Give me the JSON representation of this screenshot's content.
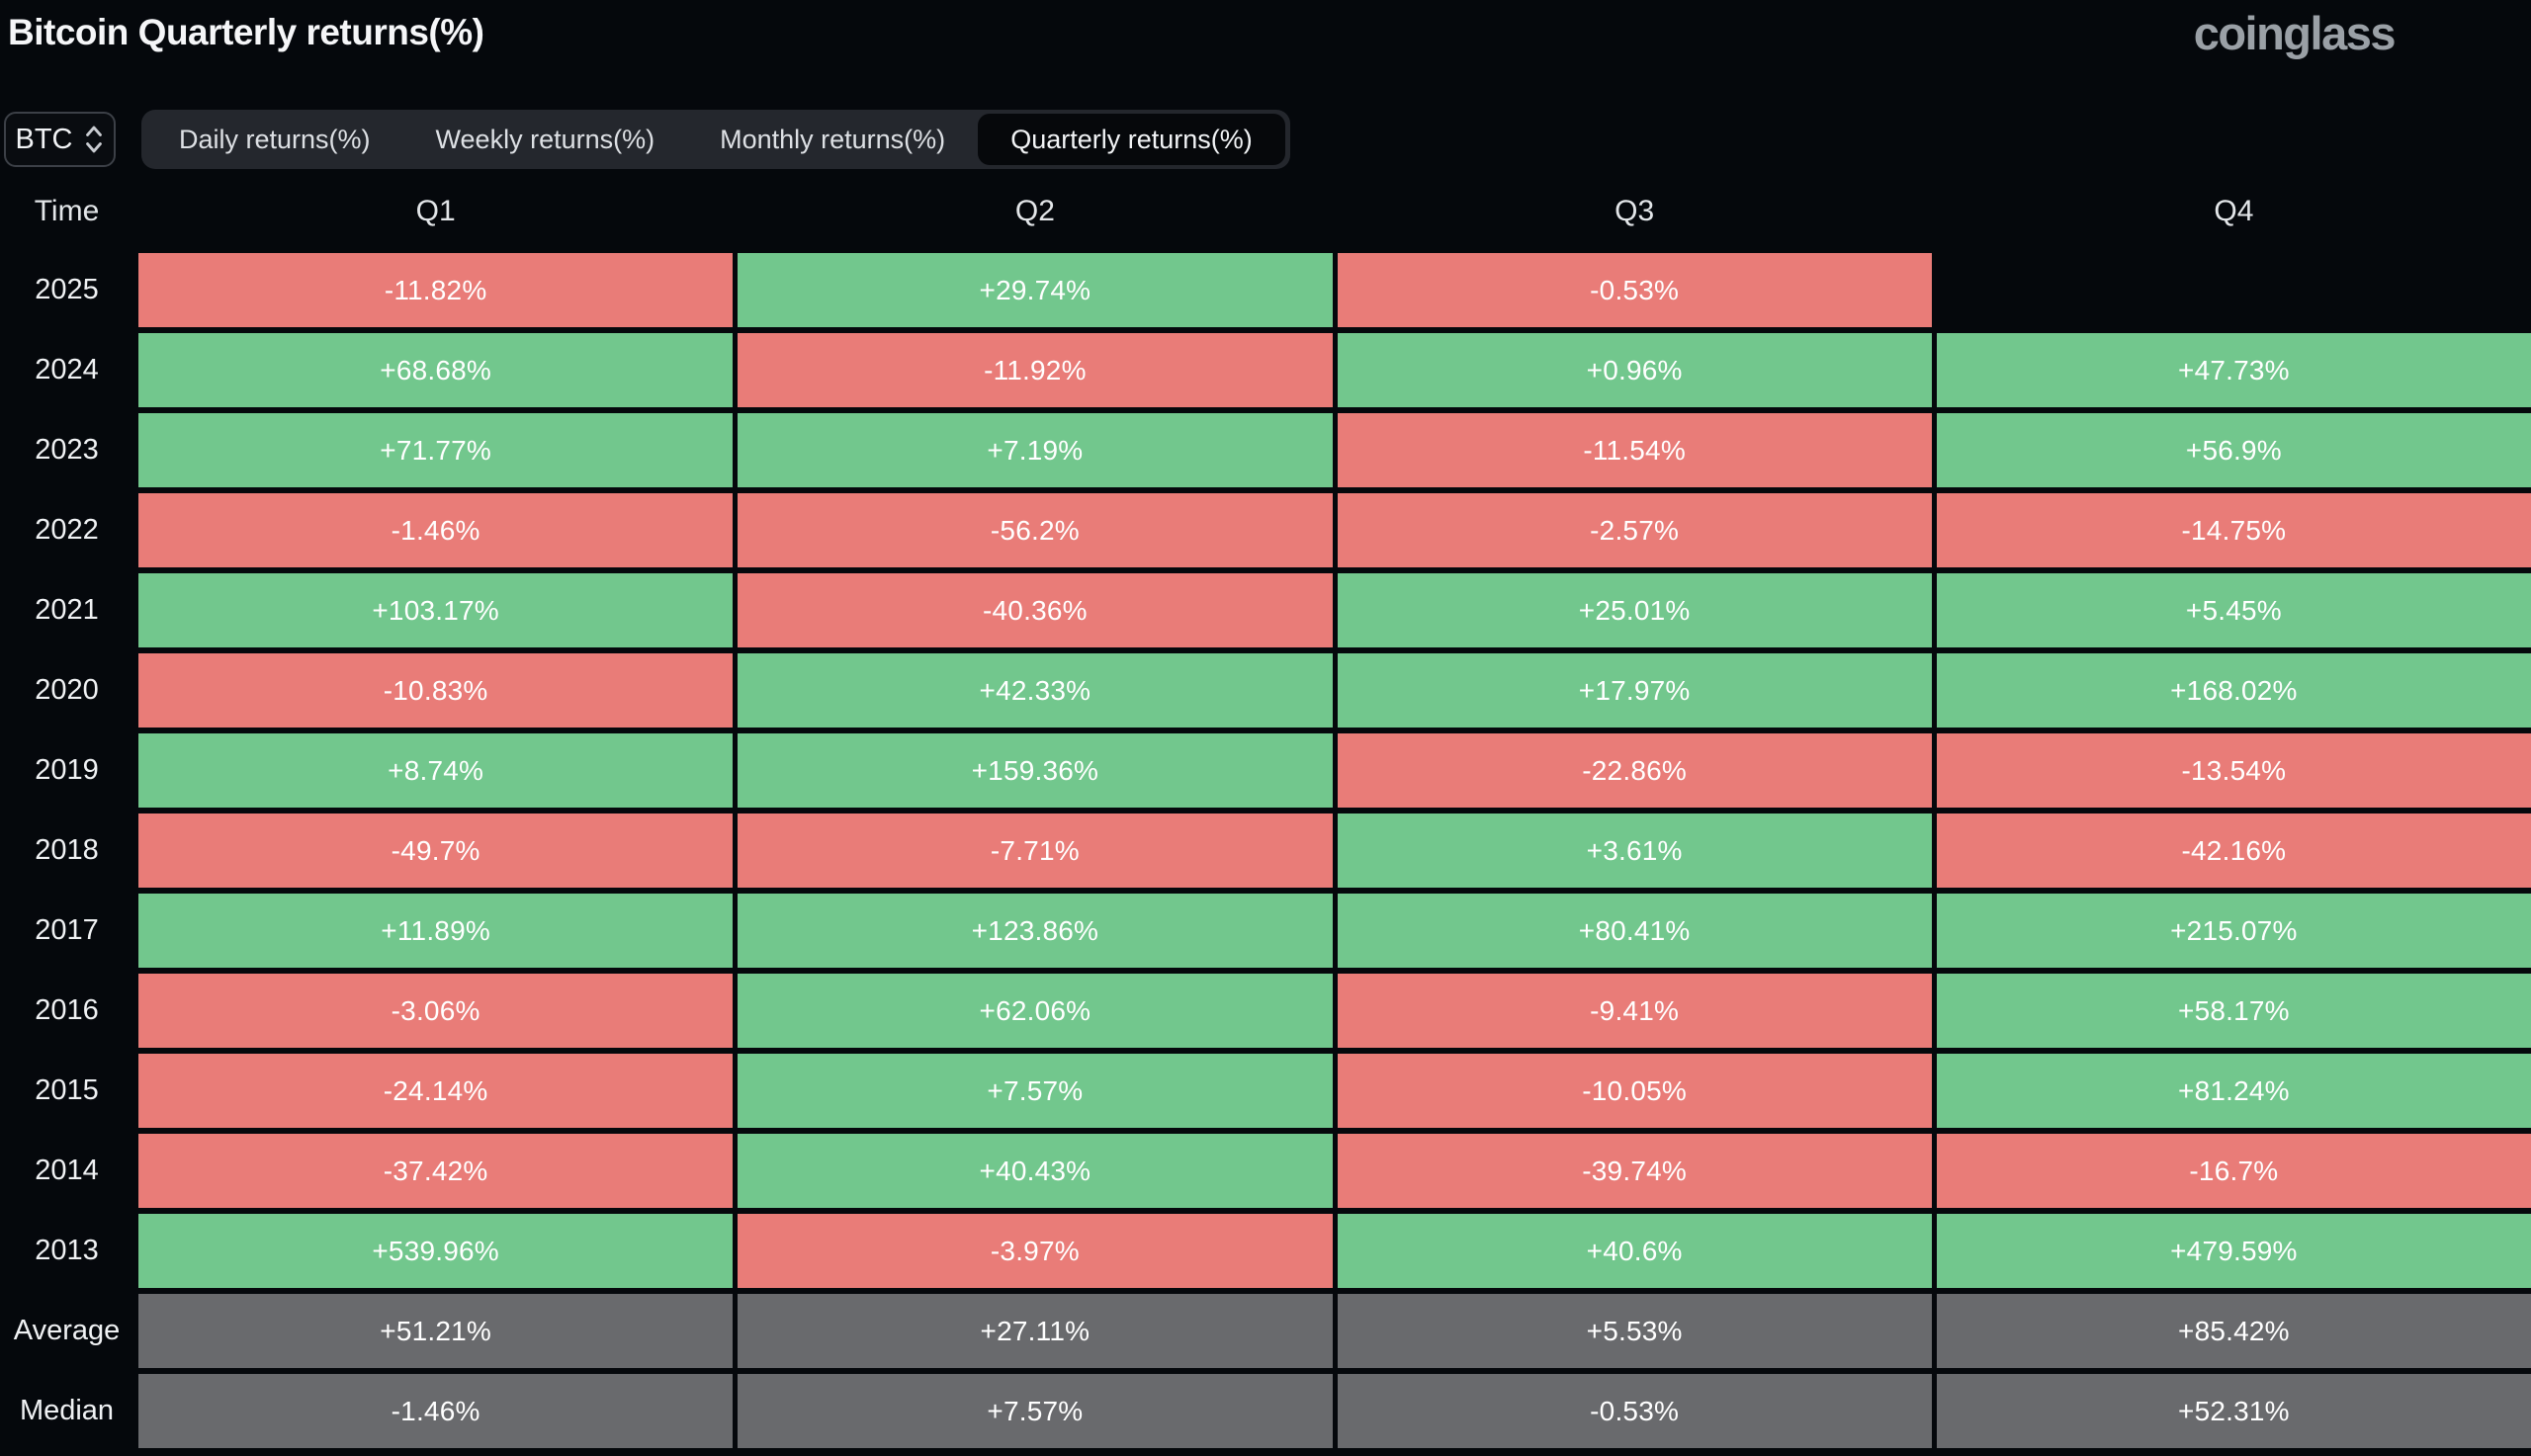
{
  "header": {
    "title": "Bitcoin Quarterly returns(%)",
    "logo": "coinglass"
  },
  "controls": {
    "coin": "BTC",
    "coin_selector_icon": "updown-chevron-icon",
    "tabs": [
      {
        "label": "Daily returns(%)",
        "selected": false
      },
      {
        "label": "Weekly returns(%)",
        "selected": false
      },
      {
        "label": "Monthly returns(%)",
        "selected": false
      },
      {
        "label": "Quarterly returns(%)",
        "selected": true
      }
    ]
  },
  "table": {
    "columns": [
      "Time",
      "Q1",
      "Q2",
      "Q3",
      "Q4"
    ],
    "rows": [
      {
        "label": "2025",
        "cells": [
          {
            "value": "-11.82%",
            "type": "neg"
          },
          {
            "value": "+29.74%",
            "type": "pos"
          },
          {
            "value": "-0.53%",
            "type": "neg"
          },
          {
            "value": "",
            "type": "empty"
          }
        ]
      },
      {
        "label": "2024",
        "cells": [
          {
            "value": "+68.68%",
            "type": "pos"
          },
          {
            "value": "-11.92%",
            "type": "neg"
          },
          {
            "value": "+0.96%",
            "type": "pos"
          },
          {
            "value": "+47.73%",
            "type": "pos"
          }
        ]
      },
      {
        "label": "2023",
        "cells": [
          {
            "value": "+71.77%",
            "type": "pos"
          },
          {
            "value": "+7.19%",
            "type": "pos"
          },
          {
            "value": "-11.54%",
            "type": "neg"
          },
          {
            "value": "+56.9%",
            "type": "pos"
          }
        ]
      },
      {
        "label": "2022",
        "cells": [
          {
            "value": "-1.46%",
            "type": "neg"
          },
          {
            "value": "-56.2%",
            "type": "neg"
          },
          {
            "value": "-2.57%",
            "type": "neg"
          },
          {
            "value": "-14.75%",
            "type": "neg"
          }
        ]
      },
      {
        "label": "2021",
        "cells": [
          {
            "value": "+103.17%",
            "type": "pos"
          },
          {
            "value": "-40.36%",
            "type": "neg"
          },
          {
            "value": "+25.01%",
            "type": "pos"
          },
          {
            "value": "+5.45%",
            "type": "pos"
          }
        ]
      },
      {
        "label": "2020",
        "cells": [
          {
            "value": "-10.83%",
            "type": "neg"
          },
          {
            "value": "+42.33%",
            "type": "pos"
          },
          {
            "value": "+17.97%",
            "type": "pos"
          },
          {
            "value": "+168.02%",
            "type": "pos"
          }
        ]
      },
      {
        "label": "2019",
        "cells": [
          {
            "value": "+8.74%",
            "type": "pos"
          },
          {
            "value": "+159.36%",
            "type": "pos"
          },
          {
            "value": "-22.86%",
            "type": "neg"
          },
          {
            "value": "-13.54%",
            "type": "neg"
          }
        ]
      },
      {
        "label": "2018",
        "cells": [
          {
            "value": "-49.7%",
            "type": "neg"
          },
          {
            "value": "-7.71%",
            "type": "neg"
          },
          {
            "value": "+3.61%",
            "type": "pos"
          },
          {
            "value": "-42.16%",
            "type": "neg"
          }
        ]
      },
      {
        "label": "2017",
        "cells": [
          {
            "value": "+11.89%",
            "type": "pos"
          },
          {
            "value": "+123.86%",
            "type": "pos"
          },
          {
            "value": "+80.41%",
            "type": "pos"
          },
          {
            "value": "+215.07%",
            "type": "pos"
          }
        ]
      },
      {
        "label": "2016",
        "cells": [
          {
            "value": "-3.06%",
            "type": "neg"
          },
          {
            "value": "+62.06%",
            "type": "pos"
          },
          {
            "value": "-9.41%",
            "type": "neg"
          },
          {
            "value": "+58.17%",
            "type": "pos"
          }
        ]
      },
      {
        "label": "2015",
        "cells": [
          {
            "value": "-24.14%",
            "type": "neg"
          },
          {
            "value": "+7.57%",
            "type": "pos"
          },
          {
            "value": "-10.05%",
            "type": "neg"
          },
          {
            "value": "+81.24%",
            "type": "pos"
          }
        ]
      },
      {
        "label": "2014",
        "cells": [
          {
            "value": "-37.42%",
            "type": "neg"
          },
          {
            "value": "+40.43%",
            "type": "pos"
          },
          {
            "value": "-39.74%",
            "type": "neg"
          },
          {
            "value": "-16.7%",
            "type": "neg"
          }
        ]
      },
      {
        "label": "2013",
        "cells": [
          {
            "value": "+539.96%",
            "type": "pos"
          },
          {
            "value": "-3.97%",
            "type": "neg"
          },
          {
            "value": "+40.6%",
            "type": "pos"
          },
          {
            "value": "+479.59%",
            "type": "pos"
          }
        ]
      },
      {
        "label": "Average",
        "cells": [
          {
            "value": "+51.21%",
            "type": "agg"
          },
          {
            "value": "+27.11%",
            "type": "agg"
          },
          {
            "value": "+5.53%",
            "type": "agg"
          },
          {
            "value": "+85.42%",
            "type": "agg"
          }
        ]
      },
      {
        "label": "Median",
        "cells": [
          {
            "value": "-1.46%",
            "type": "agg"
          },
          {
            "value": "+7.57%",
            "type": "agg"
          },
          {
            "value": "-0.53%",
            "type": "agg"
          },
          {
            "value": "+52.31%",
            "type": "agg"
          }
        ]
      }
    ]
  },
  "colors": {
    "positive": "#72c78d",
    "negative": "#e97c78",
    "aggregate": "#696a6d",
    "background": "#05080c",
    "tabbar_background": "#24272d",
    "selected_tab_background": "#06080b",
    "logo": "#9aa0a6"
  },
  "chart_data": {
    "type": "heatmap",
    "title": "Bitcoin Quarterly returns(%)",
    "unit": "%",
    "categories": [
      "2025",
      "2024",
      "2023",
      "2022",
      "2021",
      "2020",
      "2019",
      "2018",
      "2017",
      "2016",
      "2015",
      "2014",
      "2013",
      "Average",
      "Median"
    ],
    "series": [
      {
        "name": "Q1",
        "values": [
          -11.82,
          68.68,
          71.77,
          -1.46,
          103.17,
          -10.83,
          8.74,
          -49.7,
          11.89,
          -3.06,
          -24.14,
          -37.42,
          539.96,
          51.21,
          -1.46
        ]
      },
      {
        "name": "Q2",
        "values": [
          29.74,
          -11.92,
          7.19,
          -56.2,
          -40.36,
          42.33,
          159.36,
          -7.71,
          123.86,
          62.06,
          7.57,
          40.43,
          -3.97,
          27.11,
          7.57
        ]
      },
      {
        "name": "Q3",
        "values": [
          -0.53,
          0.96,
          -11.54,
          -2.57,
          25.01,
          17.97,
          -22.86,
          3.61,
          80.41,
          -9.41,
          -10.05,
          -39.74,
          40.6,
          5.53,
          -0.53
        ]
      },
      {
        "name": "Q4",
        "values": [
          null,
          47.73,
          56.9,
          -14.75,
          5.45,
          168.02,
          -13.54,
          -42.16,
          215.07,
          58.17,
          81.24,
          -16.7,
          479.59,
          85.42,
          52.31
        ]
      }
    ],
    "color_rule": "green = positive return, red = negative return, gray = Average/Median aggregate rows, empty = no data yet"
  }
}
